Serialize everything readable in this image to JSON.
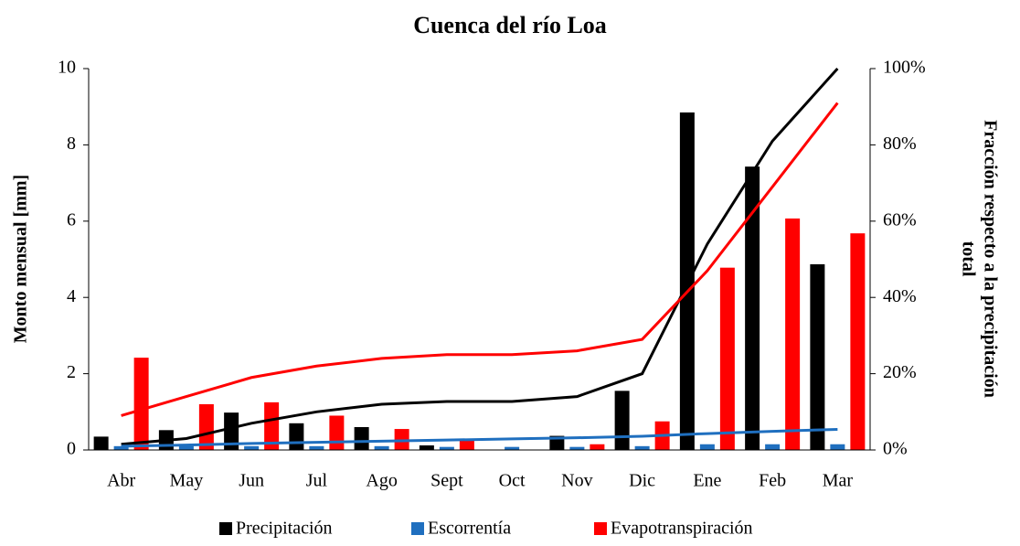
{
  "chart_data": {
    "type": "bar",
    "title": "Cuenca del río Loa",
    "ylabel": "Monto mensual [mm]",
    "y2label": [
      "Fracción respecto a la precipitación",
      "total"
    ],
    "categories": [
      "Abr",
      "May",
      "Jun",
      "Jul",
      "Ago",
      "Sept",
      "Oct",
      "Nov",
      "Dic",
      "Ene",
      "Feb",
      "Mar"
    ],
    "ylim": [
      0,
      10
    ],
    "yticks": [
      0,
      2,
      4,
      6,
      8,
      10
    ],
    "y2lim": [
      0,
      100
    ],
    "y2ticks": [
      {
        "value": 0,
        "label": "0%"
      },
      {
        "value": 20,
        "label": "20%"
      },
      {
        "value": 40,
        "label": "40%"
      },
      {
        "value": 60,
        "label": "60%"
      },
      {
        "value": 80,
        "label": "80%"
      },
      {
        "value": 100,
        "label": "100%"
      }
    ],
    "legend": "bottom",
    "series": [
      {
        "name": "Precipitación",
        "color": "#000000",
        "values": [
          0.35,
          0.52,
          0.98,
          0.7,
          0.6,
          0.12,
          0,
          0.37,
          1.55,
          8.85,
          7.43,
          4.87
        ]
      },
      {
        "name": "Escorrentía",
        "color": "#1f6fbf",
        "values": [
          0.1,
          0.1,
          0.1,
          0.1,
          0.1,
          0.08,
          0.08,
          0.08,
          0.1,
          0.15,
          0.15,
          0.15
        ]
      },
      {
        "name": "Evapotranspiración",
        "color": "#ff0000",
        "values": [
          2.42,
          1.2,
          1.25,
          0.9,
          0.55,
          0.25,
          0,
          0.15,
          0.75,
          4.78,
          6.07,
          5.68
        ]
      },
      {
        "type": "line",
        "axis": "y2",
        "color": "#000000",
        "values": [
          1.5,
          3,
          7,
          10,
          12,
          12.7,
          12.7,
          14,
          20,
          54,
          81,
          100
        ]
      },
      {
        "type": "line",
        "axis": "y2",
        "color": "#1f6fbf",
        "values": [
          1,
          1.3,
          1.7,
          2,
          2.3,
          2.6,
          2.9,
          3.2,
          3.6,
          4.3,
          4.9,
          5.4
        ]
      },
      {
        "type": "line",
        "axis": "y2",
        "color": "#ff0000",
        "values": [
          9,
          14,
          19,
          22,
          24,
          25,
          25,
          26,
          29,
          47,
          69,
          91
        ]
      }
    ]
  }
}
